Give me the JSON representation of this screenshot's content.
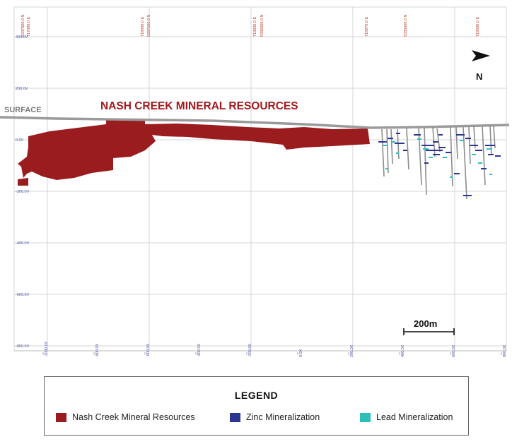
{
  "section": {
    "title": "NASH CREEK MINERAL RESOURCES",
    "surface_label": "SURFACE",
    "north_label": "N",
    "scale_label": "200m",
    "top_labels": [
      "5337600.0 N",
      "717000.0 E",
      "718000.0 E",
      "5337500.0 N",
      "718600.0 E",
      "5336000.0 N",
      "718970.0 E",
      "5335600.0 N",
      "719500.0 E"
    ],
    "elevation_labels": [
      "400.0V",
      "200.0V",
      "0.0V",
      "-200.0V",
      "-400.0V",
      "-600.0V",
      "-800.0V"
    ],
    "bottom_labels": [
      "-1000.0X",
      "-800.0X",
      "-600.0X",
      "-400.0X",
      "-200.0X",
      "0.0X",
      "200.0X",
      "400.0X",
      "600.0X",
      "800.0X"
    ],
    "colors": {
      "resource": "#9b1c1f",
      "zinc": "#2c3590",
      "lead": "#2ebfb8",
      "surface": "#9a9a9a",
      "drill": "#8c8c8c",
      "grid": "#d4d4d4",
      "label_red": "#c0392b",
      "label_blue": "#4a55a8"
    }
  },
  "legend": {
    "title": "LEGEND",
    "items": [
      {
        "label": "Nash Creek Mineral Resources",
        "color": "#9b1c1f"
      },
      {
        "label": "Zinc Mineralization",
        "color": "#2c3590"
      },
      {
        "label": "Lead Mineralization",
        "color": "#2ebfb8"
      }
    ]
  }
}
